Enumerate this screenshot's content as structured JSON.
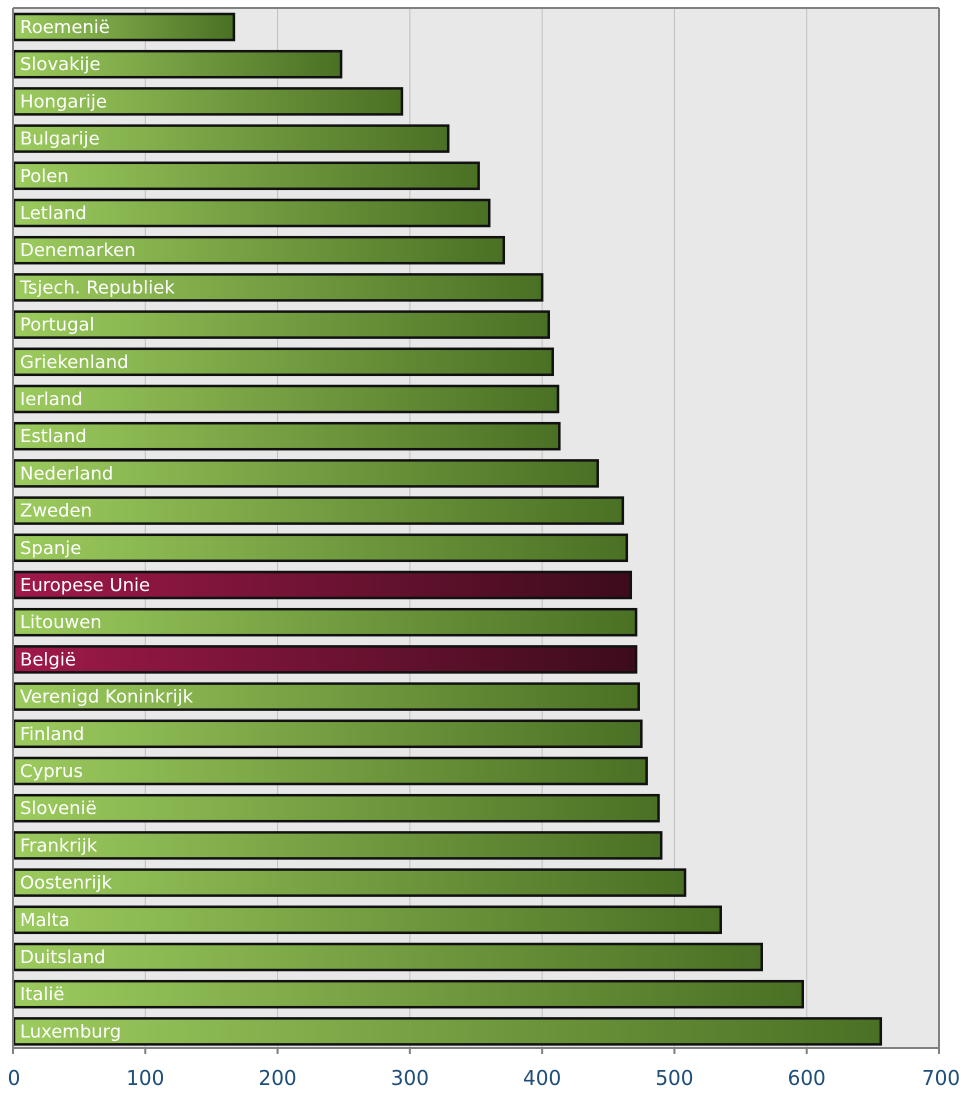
{
  "chart_data": {
    "type": "bar",
    "orientation": "horizontal",
    "categories": [
      "Roemenië",
      "Slovakije",
      "Hongarije",
      "Bulgarije",
      "Polen",
      "Letland",
      "Denemarken",
      "Tsjech. Republiek",
      "Portugal",
      "Griekenland",
      "Ierland",
      "Estland",
      "Nederland",
      "Zweden",
      "Spanje",
      "Europese Unie",
      "Litouwen",
      "België",
      "Verenigd Koninkrijk",
      "Finland",
      "Cyprus",
      "Slovenië",
      "Frankrijk",
      "Oostenrijk",
      "Malta",
      "Duitsland",
      "Italië",
      "Luxemburg"
    ],
    "values": [
      167,
      248,
      294,
      329,
      352,
      360,
      371,
      400,
      405,
      408,
      412,
      413,
      442,
      461,
      464,
      467,
      471,
      471,
      473,
      475,
      479,
      488,
      490,
      508,
      535,
      566,
      597,
      656
    ],
    "highlighted": [
      "Europese Unie",
      "België"
    ],
    "xlim": [
      0,
      700
    ],
    "xticks": [
      "0",
      "100",
      "200",
      "300",
      "400",
      "500",
      "600",
      "700"
    ],
    "grid": true,
    "colors": {
      "default_bar_light": "#9ccb5e",
      "default_bar_dark": "#4a7024",
      "highlight_bar_light": "#a0194a",
      "highlight_bar_dark": "#3c0c1c",
      "plot_background": "#e8e8e8",
      "grid": "#bfbfbf",
      "axis": "#808080",
      "tick_label": "#1f4e79",
      "bar_border": "#111111"
    }
  }
}
